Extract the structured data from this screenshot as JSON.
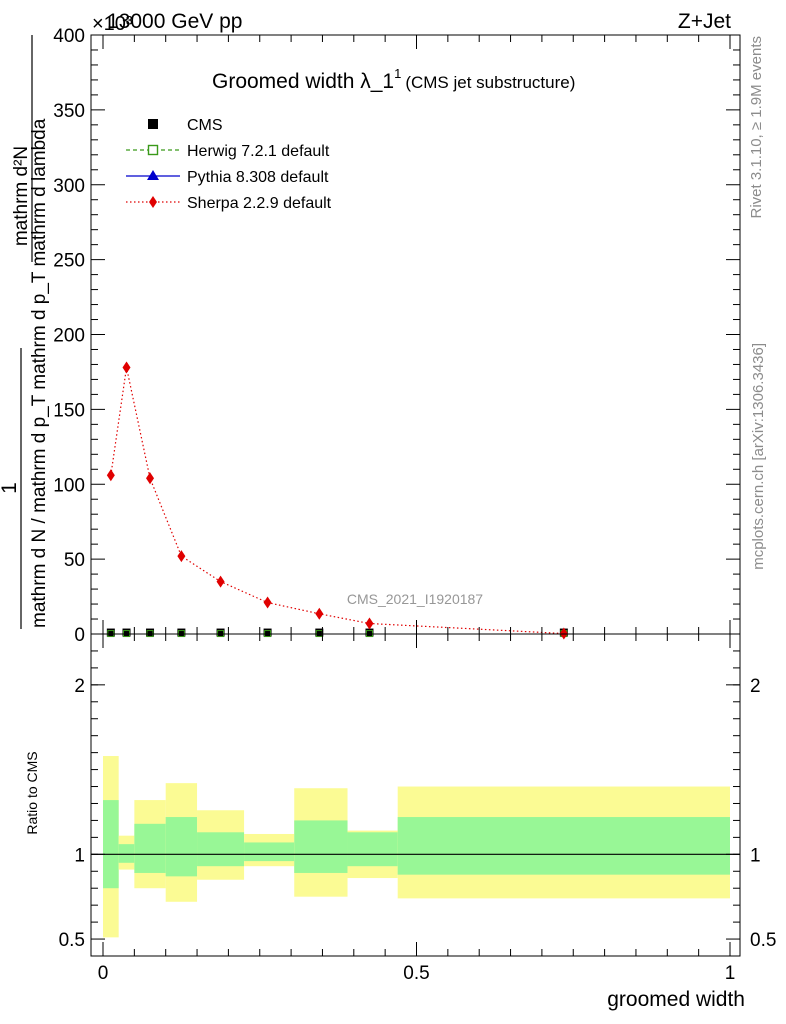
{
  "header": {
    "energy": "13000 GeV pp",
    "process": "Z+Jet",
    "exponent": "×10³"
  },
  "title": {
    "main": "Groomed width λ_1",
    "superscript": "1",
    "sub": "(CMS jet substructure)"
  },
  "side_labels": {
    "rivet": "Rivet 3.1.10, ≥ 1.9M events",
    "mcplots": "mcplots.cern.ch [arXiv:1306.3436]"
  },
  "watermark": "CMS_2021_I1920187",
  "ylabel_main": {
    "numerator": "mathrm d²N",
    "denominator": "mathrm d N / mathrm d p_T mathrm d p_T mathrm d lambda",
    "one": "1"
  },
  "ylabel_ratio": "Ratio to CMS",
  "xlabel": "groomed width",
  "legend": [
    {
      "name": "CMS",
      "marker": "square-filled",
      "color": "#000000",
      "line": "none"
    },
    {
      "name": "Herwig 7.2.1 default",
      "marker": "square-open",
      "color": "#3a9a1a",
      "line": "dashed"
    },
    {
      "name": "Pythia 8.308 default",
      "marker": "triangle",
      "color": "#0000cc",
      "line": "solid"
    },
    {
      "name": "Sherpa 2.2.9 default",
      "marker": "diamond",
      "color": "#e00000",
      "line": "dotted"
    }
  ],
  "chart_data": [
    {
      "type": "line",
      "panel": "main",
      "xlim": [
        -0.02,
        1.01
      ],
      "ylim": [
        0,
        400
      ],
      "y_ticks": [
        0,
        50,
        100,
        150,
        200,
        250,
        300,
        350,
        400
      ],
      "y_tick_labels": [
        "0",
        "50",
        "100",
        "150",
        "200",
        "250",
        "300",
        "350",
        "400"
      ],
      "series": [
        {
          "name": "CMS",
          "color": "#000000",
          "x": [
            0.0125,
            0.0375,
            0.075,
            0.125,
            0.1875,
            0.2625,
            0.345,
            0.425,
            0.735
          ],
          "y": [
            0.3,
            0.3,
            0.3,
            0.3,
            0.3,
            0.3,
            0.3,
            0.3,
            0.3
          ]
        },
        {
          "name": "Sherpa 2.2.9 default",
          "color": "#e00000",
          "x": [
            0.0125,
            0.0375,
            0.075,
            0.125,
            0.1875,
            0.2625,
            0.345,
            0.425,
            0.735
          ],
          "y": [
            106,
            178,
            104,
            52,
            35,
            21,
            13.5,
            7,
            0.3
          ]
        }
      ]
    },
    {
      "type": "area",
      "panel": "ratio",
      "xlim": [
        -0.02,
        1.01
      ],
      "ylim": [
        0.4,
        2.3
      ],
      "y_ticks": [
        0.5,
        1,
        2
      ],
      "y_tick_labels": [
        "0.5",
        "1",
        "2"
      ],
      "x_ticks": [
        0,
        0.5,
        1
      ],
      "x_tick_labels": [
        "0",
        "0.5",
        "1"
      ],
      "bins": [
        {
          "lo": 0.0,
          "hi": 0.025,
          "yellow": [
            0.51,
            1.58
          ],
          "green": [
            0.8,
            1.32
          ]
        },
        {
          "lo": 0.025,
          "hi": 0.05,
          "yellow": [
            0.91,
            1.11
          ],
          "green": [
            0.95,
            1.06
          ]
        },
        {
          "lo": 0.05,
          "hi": 0.1,
          "yellow": [
            0.8,
            1.32
          ],
          "green": [
            0.89,
            1.18
          ]
        },
        {
          "lo": 0.1,
          "hi": 0.15,
          "yellow": [
            0.72,
            1.42
          ],
          "green": [
            0.87,
            1.22
          ]
        },
        {
          "lo": 0.15,
          "hi": 0.225,
          "yellow": [
            0.85,
            1.26
          ],
          "green": [
            0.93,
            1.13
          ]
        },
        {
          "lo": 0.225,
          "hi": 0.305,
          "yellow": [
            0.93,
            1.12
          ],
          "green": [
            0.96,
            1.07
          ]
        },
        {
          "lo": 0.305,
          "hi": 0.39,
          "yellow": [
            0.75,
            1.39
          ],
          "green": [
            0.89,
            1.2
          ]
        },
        {
          "lo": 0.39,
          "hi": 0.47,
          "yellow": [
            0.86,
            1.14
          ],
          "green": [
            0.93,
            1.13
          ]
        },
        {
          "lo": 0.47,
          "hi": 1.0,
          "yellow": [
            0.74,
            1.4
          ],
          "green": [
            0.88,
            1.22
          ]
        }
      ]
    }
  ]
}
